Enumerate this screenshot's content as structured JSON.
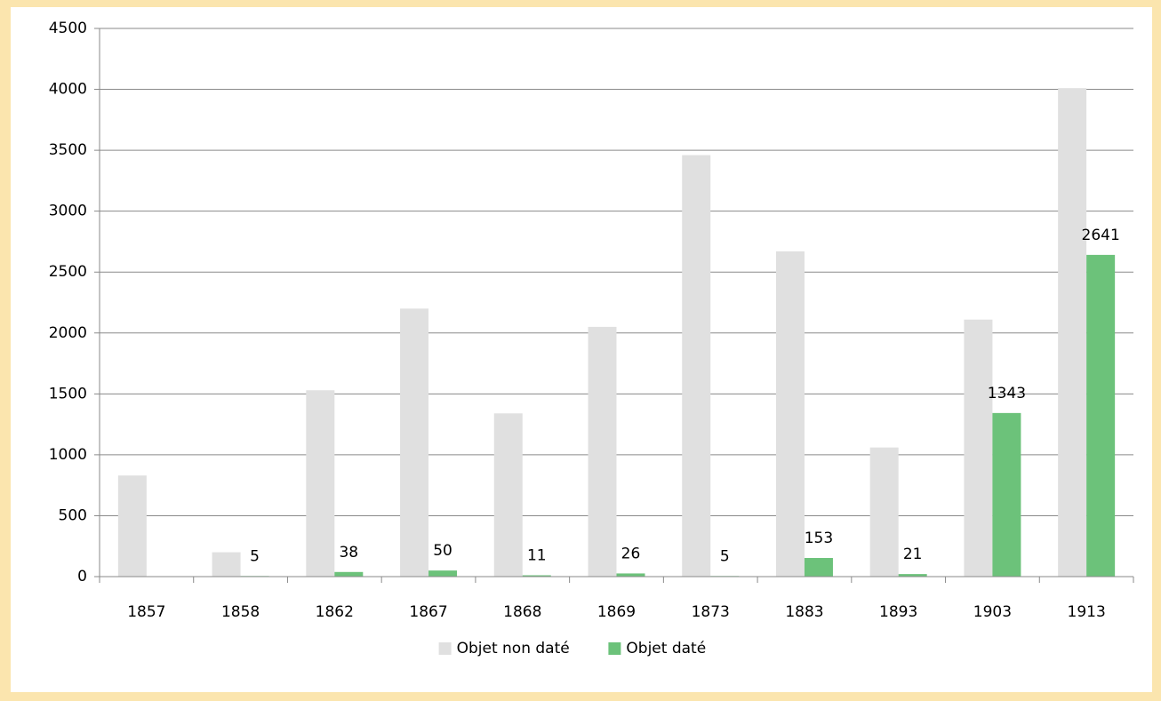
{
  "chart_data": {
    "type": "bar",
    "categories": [
      "1857",
      "1858",
      "1862",
      "1867",
      "1868",
      "1869",
      "1873",
      "1883",
      "1893",
      "1903",
      "1913"
    ],
    "series": [
      {
        "name": "Objet non daté",
        "color": "#e0e0e0",
        "values": [
          830,
          200,
          1530,
          2200,
          1340,
          2050,
          3460,
          2670,
          1060,
          2110,
          4010
        ]
      },
      {
        "name": "Objet daté",
        "color": "#6cc27a",
        "values": [
          null,
          5,
          38,
          50,
          11,
          26,
          5,
          153,
          21,
          1343,
          2641
        ],
        "data_labels": true
      }
    ],
    "ylim": [
      0,
      4500
    ],
    "yticks": [
      0,
      500,
      1000,
      1500,
      2000,
      2500,
      3000,
      3500,
      4000,
      4500
    ],
    "grid": true,
    "legend": "bottom"
  }
}
